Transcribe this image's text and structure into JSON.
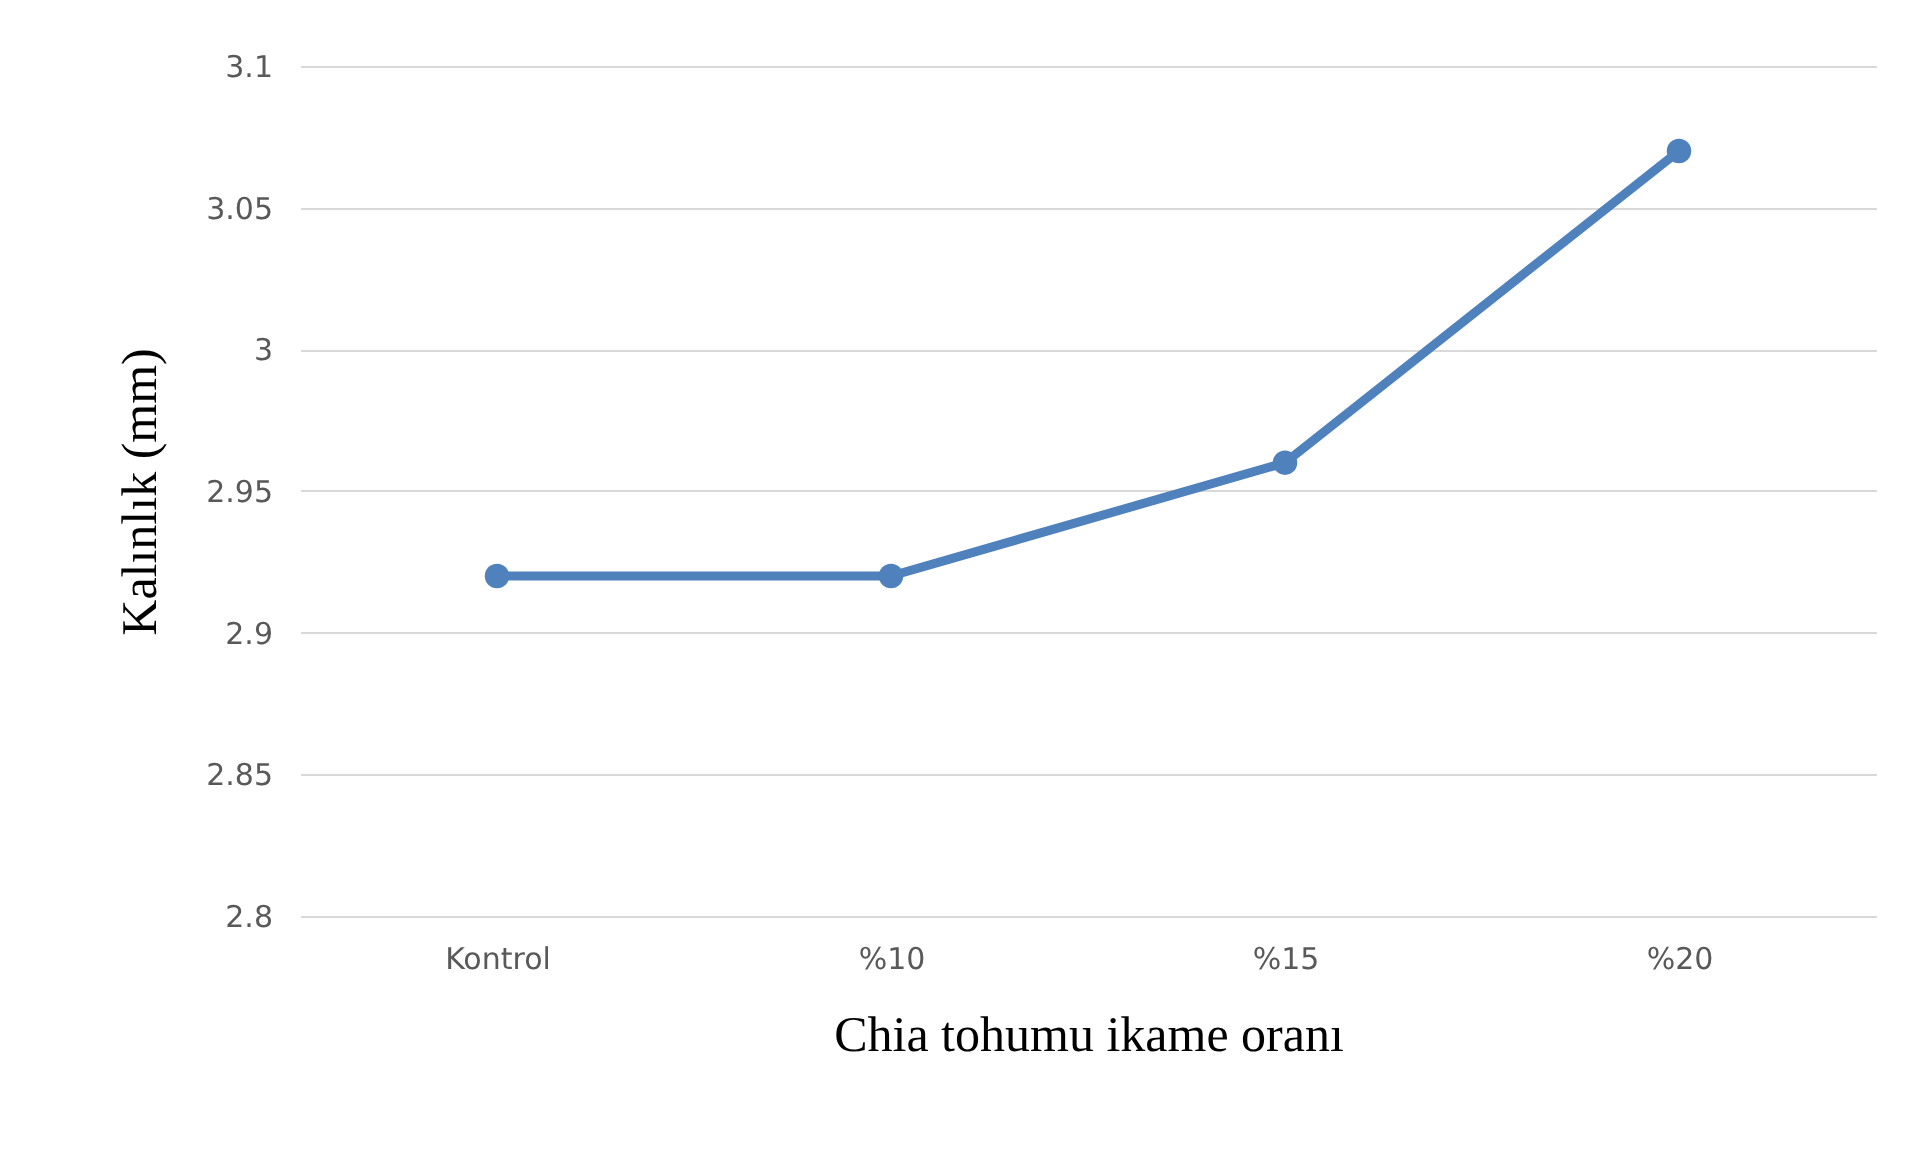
{
  "chart_data": {
    "type": "line",
    "xlabel": "Chia tohumu ikame oranı",
    "ylabel": "Kalınlık (mm)",
    "categories": [
      "Kontrol",
      "%10",
      "%15",
      "%20"
    ],
    "series": [
      {
        "color": "#4f81bd",
        "values": [
          2.92,
          2.92,
          2.96,
          3.07
        ]
      }
    ],
    "ylim": [
      2.8,
      3.1
    ],
    "yticks": [
      2.8,
      2.85,
      2.9,
      2.95,
      3,
      3.05,
      3.1
    ],
    "grid": "y",
    "marker": "circle",
    "line_style": "solid",
    "legend": false
  }
}
